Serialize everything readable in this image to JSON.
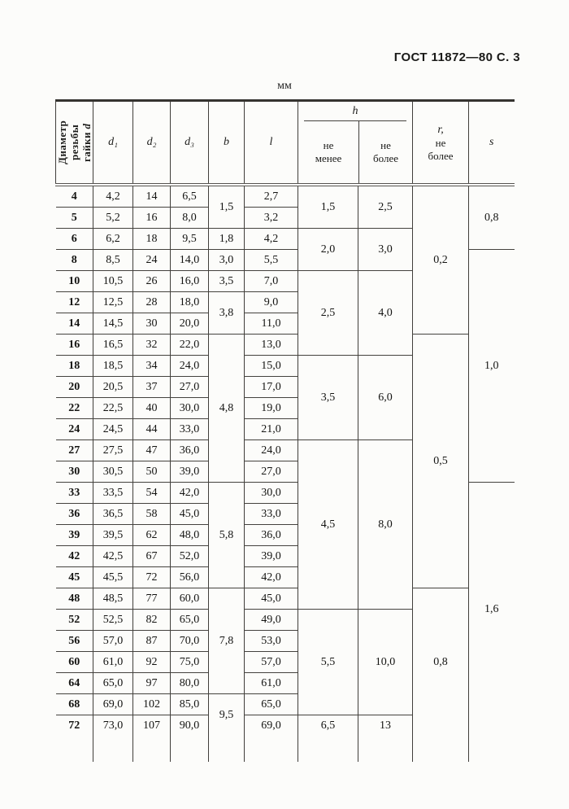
{
  "page": {
    "doc_ref": "ГОСТ 11872—80 С. 3",
    "unit_label": "мм"
  },
  "colors": {
    "paper": "#fcfcfa",
    "ink": "#161614",
    "line": "#403e3a"
  },
  "table": {
    "headers": {
      "diameter": "Диаметр резьбы\nгайки ",
      "diameter_var": "d",
      "d1": "d₁",
      "d2": "d₂",
      "d3": "d₃",
      "b": "b",
      "l": "l",
      "h": "h",
      "h_min": "не\nменее",
      "h_max": "не\nболее",
      "r_letter": "r,",
      "r_rest": "не\nболее",
      "s": "s"
    },
    "rows": [
      {
        "d": "4",
        "d1": "4,2",
        "d2": "14",
        "d3": "6,5",
        "l": "2,7"
      },
      {
        "d": "5",
        "d1": "5,2",
        "d2": "16",
        "d3": "8,0",
        "l": "3,2"
      },
      {
        "d": "6",
        "d1": "6,2",
        "d2": "18",
        "d3": "9,5",
        "l": "4,2"
      },
      {
        "d": "8",
        "d1": "8,5",
        "d2": "24",
        "d3": "14,0",
        "l": "5,5"
      },
      {
        "d": "10",
        "d1": "10,5",
        "d2": "26",
        "d3": "16,0",
        "l": "7,0"
      },
      {
        "d": "12",
        "d1": "12,5",
        "d2": "28",
        "d3": "18,0",
        "l": "9,0"
      },
      {
        "d": "14",
        "d1": "14,5",
        "d2": "30",
        "d3": "20,0",
        "l": "11,0"
      },
      {
        "d": "16",
        "d1": "16,5",
        "d2": "32",
        "d3": "22,0",
        "l": "13,0"
      },
      {
        "d": "18",
        "d1": "18,5",
        "d2": "34",
        "d3": "24,0",
        "l": "15,0"
      },
      {
        "d": "20",
        "d1": "20,5",
        "d2": "37",
        "d3": "27,0",
        "l": "17,0"
      },
      {
        "d": "22",
        "d1": "22,5",
        "d2": "40",
        "d3": "30,0",
        "l": "19,0"
      },
      {
        "d": "24",
        "d1": "24,5",
        "d2": "44",
        "d3": "33,0",
        "l": "21,0"
      },
      {
        "d": "27",
        "d1": "27,5",
        "d2": "47",
        "d3": "36,0",
        "l": "24,0"
      },
      {
        "d": "30",
        "d1": "30,5",
        "d2": "50",
        "d3": "39,0",
        "l": "27,0"
      },
      {
        "d": "33",
        "d1": "33,5",
        "d2": "54",
        "d3": "42,0",
        "l": "30,0"
      },
      {
        "d": "36",
        "d1": "36,5",
        "d2": "58",
        "d3": "45,0",
        "l": "33,0"
      },
      {
        "d": "39",
        "d1": "39,5",
        "d2": "62",
        "d3": "48,0",
        "l": "36,0"
      },
      {
        "d": "42",
        "d1": "42,5",
        "d2": "67",
        "d3": "52,0",
        "l": "39,0"
      },
      {
        "d": "45",
        "d1": "45,5",
        "d2": "72",
        "d3": "56,0",
        "l": "42,0"
      },
      {
        "d": "48",
        "d1": "48,5",
        "d2": "77",
        "d3": "60,0",
        "l": "45,0"
      },
      {
        "d": "52",
        "d1": "52,5",
        "d2": "82",
        "d3": "65,0",
        "l": "49,0"
      },
      {
        "d": "56",
        "d1": "57,0",
        "d2": "87",
        "d3": "70,0",
        "l": "53,0"
      },
      {
        "d": "60",
        "d1": "61,0",
        "d2": "92",
        "d3": "75,0",
        "l": "57,0"
      },
      {
        "d": "64",
        "d1": "65,0",
        "d2": "97",
        "d3": "80,0",
        "l": "61,0"
      },
      {
        "d": "68",
        "d1": "69,0",
        "d2": "102",
        "d3": "85,0",
        "l": "65,0"
      },
      {
        "d": "72",
        "d1": "73,0",
        "d2": "107",
        "d3": "90,0",
        "l": "69,0"
      }
    ],
    "merged": {
      "b": [
        {
          "start": 0,
          "span": 2,
          "v": "1,5"
        },
        {
          "start": 2,
          "span": 1,
          "v": "1,8"
        },
        {
          "start": 3,
          "span": 1,
          "v": "3,0"
        },
        {
          "start": 4,
          "span": 1,
          "v": "3,5"
        },
        {
          "start": 5,
          "span": 2,
          "v": "3,8"
        },
        {
          "start": 7,
          "span": 7,
          "v": "4,8"
        },
        {
          "start": 14,
          "span": 5,
          "v": "5,8"
        },
        {
          "start": 19,
          "span": 5,
          "v": "7,8"
        },
        {
          "start": 24,
          "span": 2,
          "v": "9,5"
        }
      ],
      "h_min": [
        {
          "start": 0,
          "span": 2,
          "v": "1,5"
        },
        {
          "start": 2,
          "span": 2,
          "v": "2,0"
        },
        {
          "start": 4,
          "span": 4,
          "v": "2,5"
        },
        {
          "start": 8,
          "span": 4,
          "v": "3,5"
        },
        {
          "start": 12,
          "span": 8,
          "v": "4,5"
        },
        {
          "start": 20,
          "span": 5,
          "v": "5,5"
        },
        {
          "start": 25,
          "span": 1,
          "v": "6,5"
        }
      ],
      "h_max": [
        {
          "start": 0,
          "span": 2,
          "v": "2,5"
        },
        {
          "start": 2,
          "span": 2,
          "v": "3,0"
        },
        {
          "start": 4,
          "span": 4,
          "v": "4,0"
        },
        {
          "start": 8,
          "span": 4,
          "v": "6,0"
        },
        {
          "start": 12,
          "span": 8,
          "v": "8,0"
        },
        {
          "start": 20,
          "span": 5,
          "v": "10,0"
        },
        {
          "start": 25,
          "span": 1,
          "v": "13"
        }
      ],
      "r": [
        {
          "start": 0,
          "span": 7,
          "v": "0,2"
        },
        {
          "start": 7,
          "span": 12,
          "v": "0,5"
        },
        {
          "start": 19,
          "span": 7,
          "v": "0,8"
        }
      ],
      "s": [
        {
          "start": 0,
          "span": 3,
          "v": "0,8"
        },
        {
          "start": 3,
          "span": 11,
          "v": "1,0"
        },
        {
          "start": 14,
          "span": 12,
          "v": "1,6"
        }
      ]
    }
  }
}
